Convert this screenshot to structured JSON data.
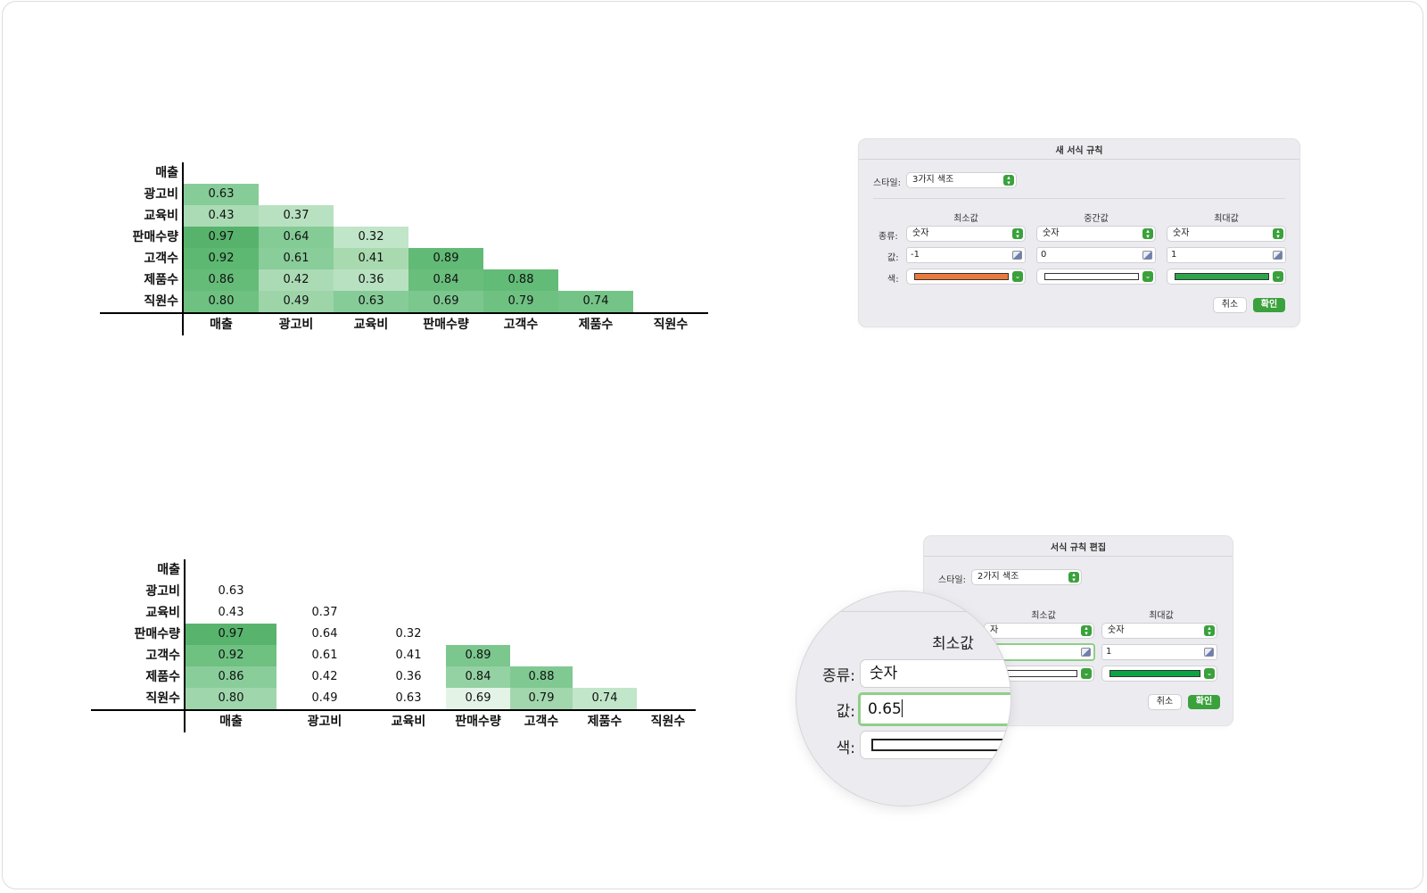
{
  "heatmap_top": {
    "rows": [
      "매출",
      "광고비",
      "교육비",
      "판매수량",
      "고객수",
      "제품수",
      "직원수"
    ],
    "cols": [
      "매출",
      "광고비",
      "교육비",
      "판매수량",
      "고객수",
      "제품수",
      "직원수"
    ],
    "cells": [
      {
        "r": 1,
        "c": 0,
        "v": "0.63",
        "bg": "#86cc98"
      },
      {
        "r": 2,
        "c": 0,
        "v": "0.43",
        "bg": "#abdbb5"
      },
      {
        "r": 2,
        "c": 1,
        "v": "0.37",
        "bg": "#b8e1c1"
      },
      {
        "r": 3,
        "c": 0,
        "v": "0.97",
        "bg": "#57b36c"
      },
      {
        "r": 3,
        "c": 1,
        "v": "0.64",
        "bg": "#84cb96"
      },
      {
        "r": 3,
        "c": 2,
        "v": "0.32",
        "bg": "#c0e5c8"
      },
      {
        "r": 4,
        "c": 0,
        "v": "0.92",
        "bg": "#5db871"
      },
      {
        "r": 4,
        "c": 1,
        "v": "0.61",
        "bg": "#89cd9a"
      },
      {
        "r": 4,
        "c": 2,
        "v": "0.41",
        "bg": "#a9daaf"
      },
      {
        "r": 4,
        "c": 3,
        "v": "0.89",
        "bg": "#61ba75"
      },
      {
        "r": 5,
        "c": 0,
        "v": "0.86",
        "bg": "#65bc79"
      },
      {
        "r": 5,
        "c": 1,
        "v": "0.42",
        "bg": "#abdbb5"
      },
      {
        "r": 5,
        "c": 2,
        "v": "0.36",
        "bg": "#b8e1c1"
      },
      {
        "r": 5,
        "c": 3,
        "v": "0.84",
        "bg": "#69be7c"
      },
      {
        "r": 5,
        "c": 4,
        "v": "0.88",
        "bg": "#62bb76"
      },
      {
        "r": 6,
        "c": 0,
        "v": "0.80",
        "bg": "#6ec180"
      },
      {
        "r": 6,
        "c": 1,
        "v": "0.49",
        "bg": "#9dd5a9"
      },
      {
        "r": 6,
        "c": 2,
        "v": "0.63",
        "bg": "#86cc98"
      },
      {
        "r": 6,
        "c": 3,
        "v": "0.69",
        "bg": "#7bc78e"
      },
      {
        "r": 6,
        "c": 4,
        "v": "0.79",
        "bg": "#6fc182"
      },
      {
        "r": 6,
        "c": 5,
        "v": "0.74",
        "bg": "#74c487"
      }
    ]
  },
  "heatmap_bottom": {
    "rows": [
      "매출",
      "광고비",
      "교육비",
      "판매수량",
      "고객수",
      "제품수",
      "직원수"
    ],
    "cols": [
      "매출",
      "광고비",
      "교육비",
      "판매수량",
      "고객수",
      "제품수",
      "직원수"
    ],
    "cells": [
      {
        "r": 1,
        "c": 0,
        "v": "0.63",
        "bg": "#ffffff"
      },
      {
        "r": 2,
        "c": 0,
        "v": "0.43",
        "bg": "#ffffff"
      },
      {
        "r": 2,
        "c": 1,
        "v": "0.37",
        "bg": "#ffffff"
      },
      {
        "r": 3,
        "c": 0,
        "v": "0.97",
        "bg": "#58b46d"
      },
      {
        "r": 3,
        "c": 1,
        "v": "0.64",
        "bg": "#ffffff"
      },
      {
        "r": 3,
        "c": 2,
        "v": "0.32",
        "bg": "#ffffff"
      },
      {
        "r": 4,
        "c": 0,
        "v": "0.92",
        "bg": "#6ec180"
      },
      {
        "r": 4,
        "c": 1,
        "v": "0.61",
        "bg": "#ffffff"
      },
      {
        "r": 4,
        "c": 2,
        "v": "0.41",
        "bg": "#ffffff"
      },
      {
        "r": 4,
        "c": 3,
        "v": "0.89",
        "bg": "#7bc78e"
      },
      {
        "r": 5,
        "c": 0,
        "v": "0.86",
        "bg": "#89cd9a"
      },
      {
        "r": 5,
        "c": 1,
        "v": "0.42",
        "bg": "#ffffff"
      },
      {
        "r": 5,
        "c": 2,
        "v": "0.36",
        "bg": "#ffffff"
      },
      {
        "r": 5,
        "c": 3,
        "v": "0.84",
        "bg": "#94d1a3"
      },
      {
        "r": 5,
        "c": 4,
        "v": "0.88",
        "bg": "#80c992"
      },
      {
        "r": 6,
        "c": 0,
        "v": "0.80",
        "bg": "#9fd6ac"
      },
      {
        "r": 6,
        "c": 1,
        "v": "0.49",
        "bg": "#ffffff"
      },
      {
        "r": 6,
        "c": 2,
        "v": "0.63",
        "bg": "#ffffff"
      },
      {
        "r": 6,
        "c": 3,
        "v": "0.69",
        "bg": "#e3f3e6"
      },
      {
        "r": 6,
        "c": 4,
        "v": "0.79",
        "bg": "#a2d7ae"
      },
      {
        "r": 6,
        "c": 5,
        "v": "0.74",
        "bg": "#c2e6ca"
      }
    ]
  },
  "dialog_new": {
    "title": "새 서식 규칙",
    "style_label": "스타일:",
    "style_value": "3가지 색조",
    "col_min": "최소값",
    "col_mid": "중간값",
    "col_max": "최대값",
    "type_label": "종류:",
    "value_label": "값:",
    "color_label": "색:",
    "min_type": "숫자",
    "mid_type": "숫자",
    "max_type": "숫자",
    "min_value": "-1",
    "mid_value": "0",
    "max_value": "1",
    "min_color": "#ea7a3c",
    "mid_color": "#ffffff",
    "max_color": "#2ca44a",
    "cancel": "취소",
    "ok": "확인"
  },
  "dialog_edit": {
    "title": "서식 규칙 편집",
    "style_label": "스타일:",
    "style_value": "2가지 색조",
    "col_min": "최소값",
    "col_max": "최대값",
    "min_type_partial": "자",
    "max_type": "숫자",
    "max_value": "1",
    "min_color": "#ffffff",
    "max_color": "#0aa443",
    "cancel": "취소",
    "ok": "확인"
  },
  "magnifier": {
    "header": "최소값",
    "type_label": "종류:",
    "type_value": "숫자",
    "value_label": "값:",
    "value": "0.65",
    "color_label": "색:"
  },
  "colors": {
    "accent_green": "#3aa13c",
    "focus_ring": "#8fcf88",
    "dialog_bg": "#ececf0"
  }
}
